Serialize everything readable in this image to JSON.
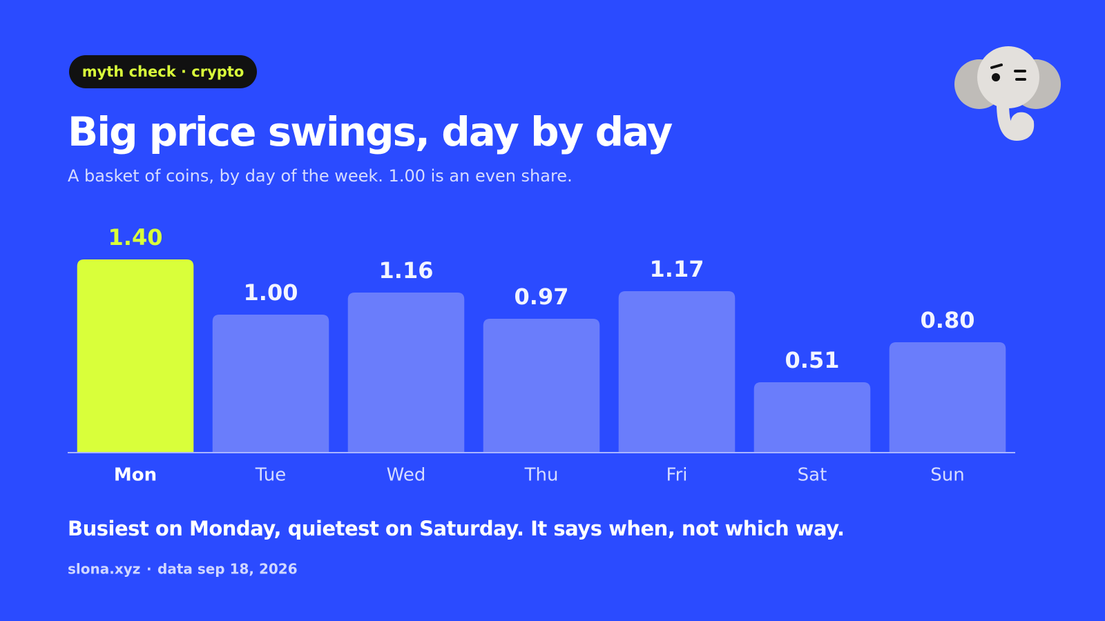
{
  "badge": "myth check · crypto",
  "chart_data": {
    "type": "bar",
    "title": "Big price swings, day by day",
    "subtitle": "A basket of coins, by day of the week. 1.00 is an even share.",
    "categories": [
      "Mon",
      "Tue",
      "Wed",
      "Thu",
      "Fri",
      "Sat",
      "Sun"
    ],
    "values": [
      1.4,
      1.0,
      1.16,
      0.97,
      1.17,
      0.51,
      0.8
    ],
    "value_labels": [
      "1.40",
      "1.00",
      "1.16",
      "0.97",
      "1.17",
      "0.51",
      "0.80"
    ],
    "ylim": [
      0,
      1.5
    ],
    "color": "#6a7dfb",
    "highlight": "Mon",
    "highlight_color": "#d9ff3a"
  },
  "note": "Busiest on Monday, quietest on Saturday. It says when, not which way.",
  "footer": {
    "source": "slona.xyz",
    "separator": "·",
    "date": "data sep 18, 2026"
  }
}
